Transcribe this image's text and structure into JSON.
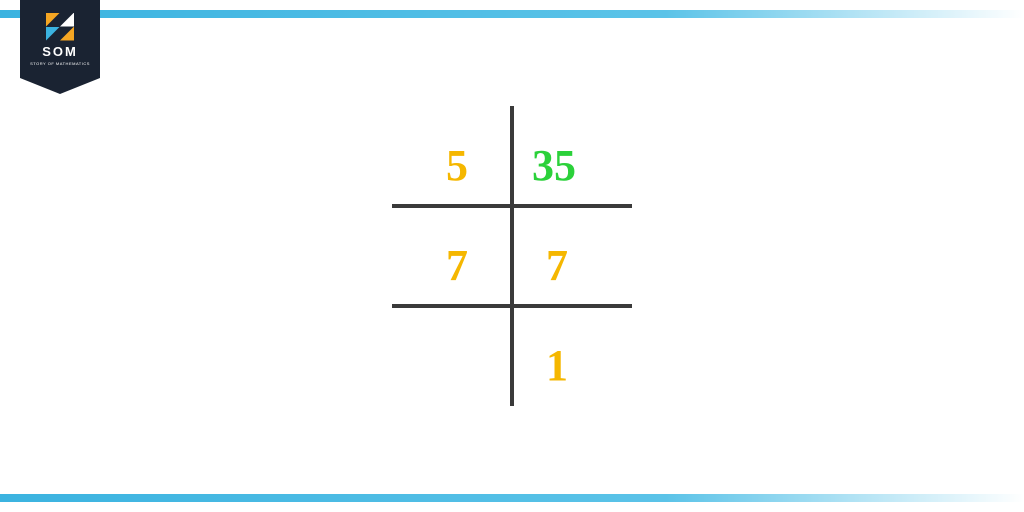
{
  "colors": {
    "bar_gradient_start": "#3bb3e0",
    "bar_gradient_mid": "#5bc3e8",
    "bar_gradient_end": "#ffffff",
    "badge_bg": "#1a2332",
    "line_color": "#3a3a3a",
    "factor_color": "#f5b700",
    "dividend_color": "#2bd13a",
    "logo_orange": "#f5a623",
    "logo_blue": "#3bb3e0",
    "logo_white": "#ffffff"
  },
  "logo": {
    "title": "SOM",
    "subtitle": "STORY OF MATHEMATICS"
  },
  "factorization": {
    "type": "ladder-division",
    "rows": [
      {
        "divisor": "5",
        "value": "35",
        "value_color": "#2bd13a"
      },
      {
        "divisor": "7",
        "value": "7",
        "value_color": "#f5b700"
      },
      {
        "divisor": "",
        "value": "1",
        "value_color": "#f5b700"
      }
    ],
    "divisor_color": "#f5b700",
    "number_fontsize": 44,
    "line_width": 4
  }
}
